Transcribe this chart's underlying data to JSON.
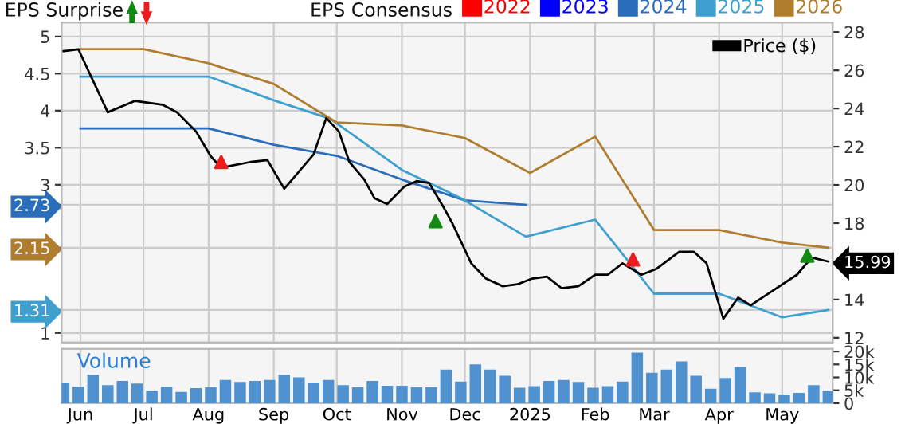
{
  "chart_data": [
    {
      "type": "line",
      "title": "EPS Surprise",
      "legend_title": "EPS Consensus",
      "legend": "top",
      "grid": true,
      "tick_labels": "y",
      "xlim": [
        "2024-05-23",
        "2025-05-25"
      ],
      "xticks": [
        {
          "value": "2024-06-01",
          "label": null
        },
        {
          "value": "2024-07-01",
          "label": null
        },
        {
          "value": "2024-08-01",
          "label": null
        },
        {
          "value": "2024-09-01",
          "label": null
        },
        {
          "value": "2024-10-01",
          "label": null
        },
        {
          "value": "2024-11-01",
          "label": null
        },
        {
          "value": "2024-12-01",
          "label": null
        },
        {
          "value": "2025-01-01",
          "label": null
        },
        {
          "value": "2025-02-01",
          "label": null
        },
        {
          "value": "2025-03-01",
          "label": null
        },
        {
          "value": "2025-04-01",
          "label": null
        },
        {
          "value": "2025-05-01",
          "label": null
        }
      ],
      "ylim": [
        0.87,
        5.19
      ],
      "yticks": [
        1,
        1.31,
        2.15,
        2.73,
        3,
        3.5,
        4,
        4.5,
        5
      ],
      "y2lim": [
        11.75,
        28.5
      ],
      "y2ticks": [
        12,
        14,
        15.99,
        18,
        20,
        22,
        24,
        26,
        28
      ],
      "series": [
        {
          "name": "2022",
          "color": "#ff0000"
        },
        {
          "name": "2023",
          "color": "#0000ff"
        },
        {
          "name": "2024",
          "color": "#2a6ebb",
          "x": [
            "2024-06-01",
            "2024-08-01",
            "2024-09-01",
            "2024-10-01",
            "2024-11-01",
            "2024-12-01",
            "2024-12-30"
          ],
          "values": [
            3.76,
            3.76,
            3.54,
            3.39,
            3.07,
            2.79,
            2.73
          ]
        },
        {
          "name": "2025",
          "color": "#3fa0d0",
          "x": [
            "2024-06-01",
            "2024-08-01",
            "2024-09-01",
            "2024-09-28",
            "2024-11-01",
            "2024-11-29",
            "2024-12-30",
            "2025-02-01",
            "2025-03-01",
            "2025-04-01",
            "2025-05-01",
            "2025-05-23"
          ],
          "values": [
            4.46,
            4.46,
            4.14,
            3.89,
            3.2,
            2.82,
            2.3,
            2.53,
            1.53,
            1.53,
            1.21,
            1.31
          ]
        },
        {
          "name": "2026",
          "color": "#b07d2f",
          "x": [
            "2024-06-01",
            "2024-07-01",
            "2024-08-01",
            "2024-09-01",
            "2024-10-01",
            "2024-11-01",
            "2024-12-01",
            "2025-01-01",
            "2025-02-01",
            "2025-03-01",
            "2025-04-01",
            "2025-05-01",
            "2025-05-23"
          ],
          "values": [
            4.83,
            4.83,
            4.64,
            4.36,
            3.84,
            3.8,
            3.63,
            3.16,
            3.65,
            2.39,
            2.39,
            2.22,
            2.15
          ]
        },
        {
          "name": "Price ($)",
          "color": "#000000",
          "axis": "y2",
          "x": [
            "2024-05-24",
            "2024-05-31",
            "2024-06-14",
            "2024-06-27",
            "2024-07-10",
            "2024-07-17",
            "2024-07-26",
            "2024-08-02",
            "2024-08-07",
            "2024-08-21",
            "2024-08-29",
            "2024-09-06",
            "2024-09-20",
            "2024-09-26",
            "2024-10-02",
            "2024-10-07",
            "2024-10-14",
            "2024-10-19",
            "2024-10-25",
            "2024-11-02",
            "2024-11-08",
            "2024-11-14",
            "2024-11-21",
            "2024-11-25",
            "2024-12-04",
            "2024-12-11",
            "2024-12-19",
            "2024-12-26",
            "2025-01-02",
            "2025-01-09",
            "2025-01-16",
            "2025-01-24",
            "2025-02-01",
            "2025-02-07",
            "2025-02-14",
            "2025-02-23",
            "2025-03-02",
            "2025-03-13",
            "2025-03-20",
            "2025-03-26",
            "2025-04-03",
            "2025-04-10",
            "2025-04-16",
            "2025-04-27",
            "2025-05-08",
            "2025-05-15",
            "2025-05-23"
          ],
          "values": [
            27.0,
            27.1,
            23.8,
            24.4,
            24.2,
            23.8,
            22.8,
            21.5,
            20.9,
            21.2,
            21.3,
            19.8,
            21.6,
            23.5,
            22.8,
            21.2,
            20.3,
            19.3,
            19.0,
            19.9,
            20.2,
            20.1,
            18.8,
            18.0,
            15.9,
            15.1,
            14.7,
            14.8,
            15.1,
            15.2,
            14.6,
            14.7,
            15.3,
            15.3,
            15.9,
            15.3,
            15.6,
            16.5,
            16.5,
            15.9,
            13.0,
            14.1,
            13.7,
            14.5,
            15.3,
            16.2,
            15.99
          ]
        },
        {
          "type": "scatter",
          "axis": "y2",
          "marker": "triangle",
          "x": [
            "2024-08-07",
            "2024-11-17",
            "2025-02-19",
            "2025-05-13"
          ],
          "values": [
            21.2,
            18.1,
            16.1,
            16.3
          ],
          "colors": [
            "#ee1c1c",
            "#138a13",
            "#ee1c1c",
            "#138a13"
          ]
        }
      ]
    },
    {
      "type": "bar",
      "title": "Volume",
      "grid": "x",
      "xlim": [
        "2024-05-23",
        "2025-05-25"
      ],
      "xticks": [
        {
          "value": "2024-06-01",
          "label": "Jun"
        },
        {
          "value": "2024-07-01",
          "label": "Jul"
        },
        {
          "value": "2024-08-01",
          "label": "Aug"
        },
        {
          "value": "2024-09-01",
          "label": "Sep"
        },
        {
          "value": "2024-10-01",
          "label": "Oct"
        },
        {
          "value": "2024-11-01",
          "label": "Nov"
        },
        {
          "value": "2024-12-01",
          "label": "Dec"
        },
        {
          "value": "2025-01-01",
          "label": "2025"
        },
        {
          "value": "2025-02-01",
          "label": "Feb"
        },
        {
          "value": "2025-03-01",
          "label": "Mar"
        },
        {
          "value": "2025-04-01",
          "label": "Apr"
        },
        {
          "value": "2025-05-01",
          "label": "May"
        }
      ],
      "y2lim": [
        0,
        21000
      ],
      "y2ticks": [
        0,
        {
          "value": 5000,
          "label": "5k"
        },
        {
          "value": 10000,
          "label": "10k"
        },
        {
          "value": 15000,
          "label": "15k"
        },
        {
          "value": 20000,
          "label": "20k"
        }
      ],
      "series": [
        {
          "color": "#4f92cf",
          "axis": "y2",
          "x": [
            "2024-05-24",
            "2024-05-31",
            "2024-06-07",
            "2024-06-14",
            "2024-06-21",
            "2024-06-28",
            "2024-07-05",
            "2024-07-12",
            "2024-07-19",
            "2024-07-26",
            "2024-08-02",
            "2024-08-09",
            "2024-08-16",
            "2024-08-23",
            "2024-08-30",
            "2024-09-06",
            "2024-09-13",
            "2024-09-20",
            "2024-09-27",
            "2024-10-04",
            "2024-10-11",
            "2024-10-18",
            "2024-10-25",
            "2024-11-01",
            "2024-11-08",
            "2024-11-15",
            "2024-11-22",
            "2024-11-29",
            "2024-12-06",
            "2024-12-13",
            "2024-12-20",
            "2024-12-27",
            "2025-01-03",
            "2025-01-10",
            "2025-01-17",
            "2025-01-24",
            "2025-01-31",
            "2025-02-07",
            "2025-02-14",
            "2025-02-21",
            "2025-02-28",
            "2025-03-07",
            "2025-03-14",
            "2025-03-21",
            "2025-03-28",
            "2025-04-04",
            "2025-04-11",
            "2025-04-18",
            "2025-04-25",
            "2025-05-02",
            "2025-05-09",
            "2025-05-16",
            "2025-05-23"
          ],
          "values": [
            8000,
            6400,
            11000,
            7000,
            8600,
            7600,
            4800,
            6400,
            4400,
            5800,
            6200,
            9000,
            8200,
            8600,
            9000,
            11000,
            10000,
            8000,
            9000,
            7000,
            6200,
            8600,
            6800,
            6800,
            6200,
            6200,
            13000,
            8400,
            15000,
            13000,
            10600,
            6000,
            6600,
            8600,
            9000,
            8200,
            6000,
            6600,
            8400,
            19600,
            11800,
            13000,
            16200,
            10600,
            5600,
            9800,
            14000,
            4200,
            3800,
            3400,
            4000,
            7000,
            4800
          ]
        }
      ]
    }
  ]
}
